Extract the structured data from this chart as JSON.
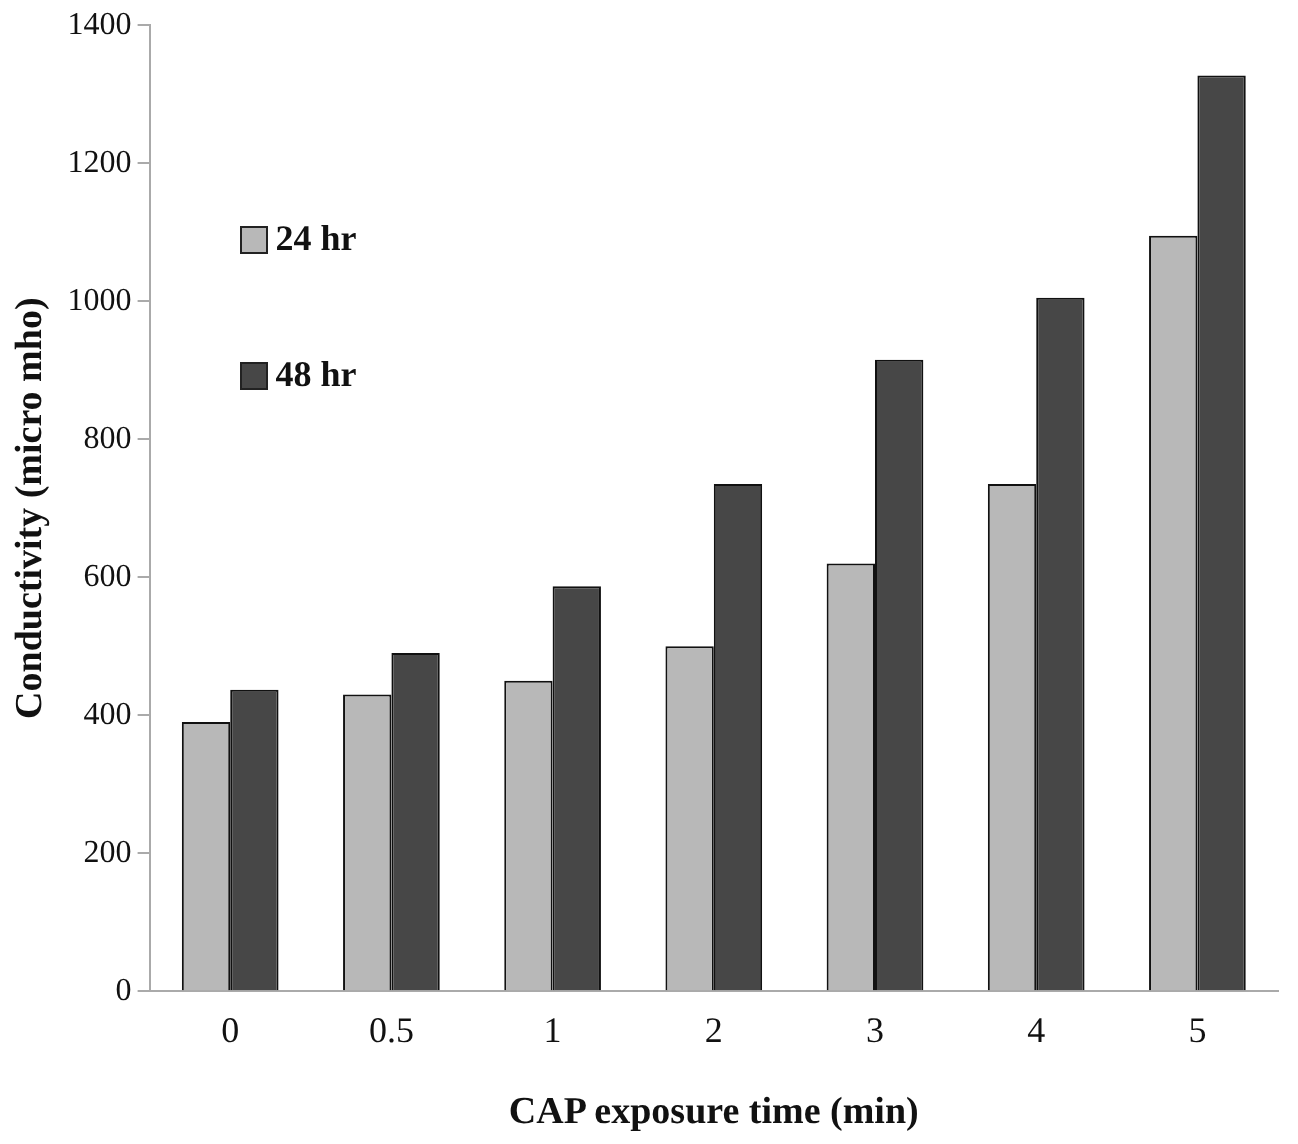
{
  "chart_data": {
    "type": "bar",
    "xlabel": "CAP exposure time (min)",
    "ylabel": "Conductivity (micro mho)",
    "categories": [
      "0",
      "0.5",
      "1",
      "2",
      "3",
      "4",
      "5"
    ],
    "series": [
      {
        "name": "24 hr",
        "color": "#b8b8b8",
        "values": [
          390,
          430,
          450,
          500,
          620,
          735,
          1095
        ]
      },
      {
        "name": "48 hr",
        "color": "#474747",
        "values": [
          437,
          490,
          587,
          735,
          915,
          1005,
          1327
        ]
      }
    ],
    "ylim": [
      0,
      1400
    ],
    "yticks": [
      0,
      200,
      400,
      600,
      800,
      1000,
      1200,
      1400
    ],
    "grid": false,
    "legend": "top left"
  }
}
